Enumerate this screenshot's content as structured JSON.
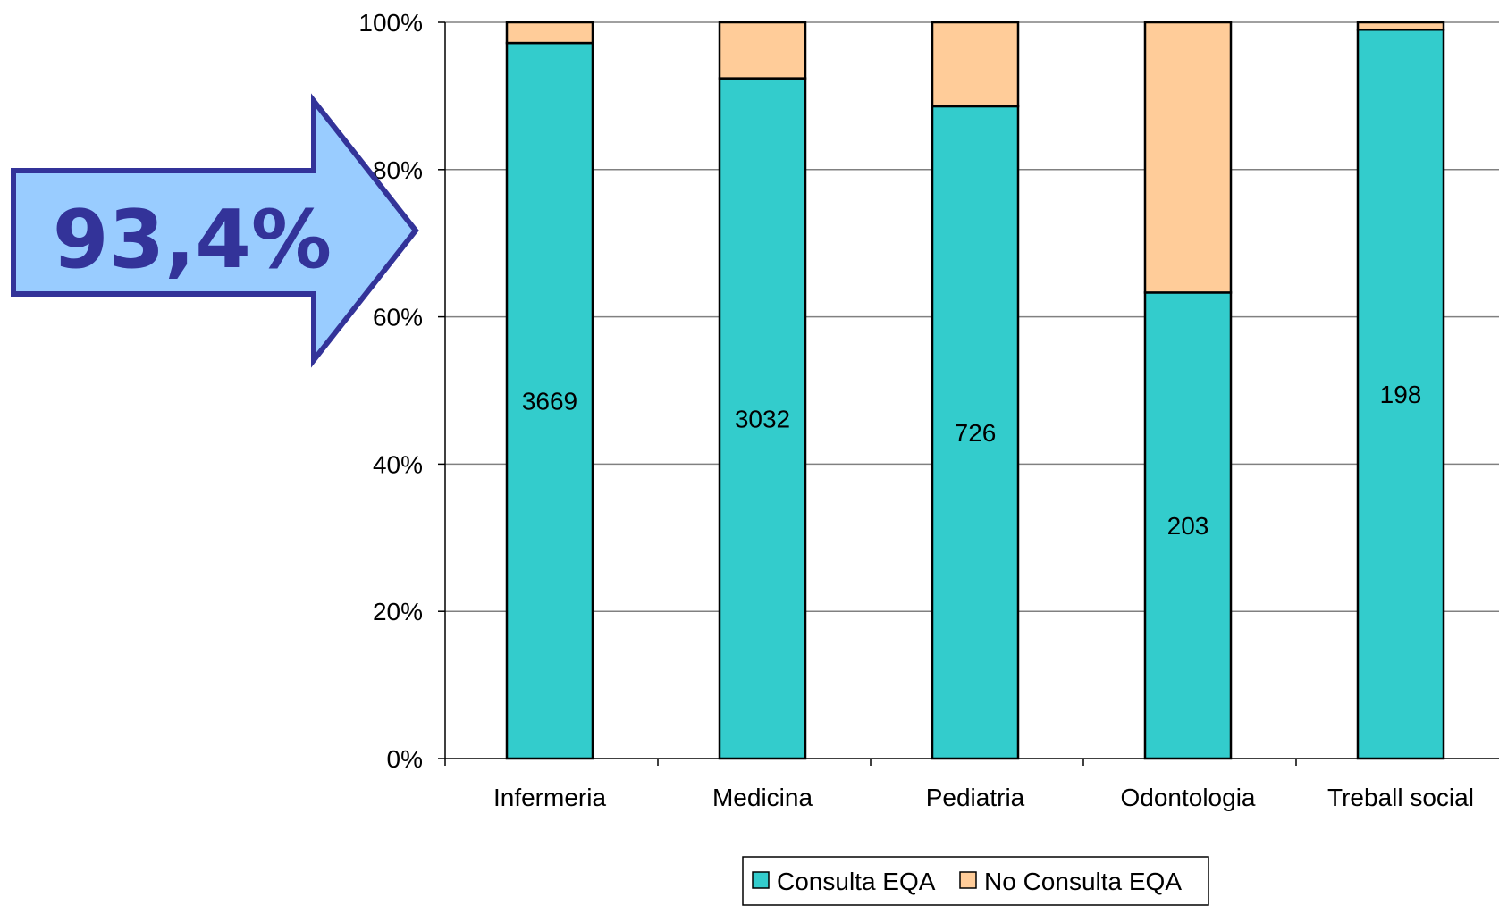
{
  "chart_data": {
    "type": "bar",
    "stacked": true,
    "percent_stacked": true,
    "categories": [
      "Infermeria",
      "Medicina",
      "Pediatria",
      "Odontologia",
      "Treball social"
    ],
    "series": [
      {
        "name": "Consulta EQA",
        "color": "#33CCCC",
        "values": [
          97.2,
          92.4,
          88.6,
          63.3,
          99.0
        ],
        "labels": [
          "3669",
          "3032",
          "726",
          "203",
          "198"
        ]
      },
      {
        "name": "No Consulta EQA",
        "color": "#FFCC99",
        "values": [
          2.8,
          7.6,
          11.4,
          36.7,
          1.0
        ]
      }
    ],
    "y_ticks": [
      "0%",
      "20%",
      "40%",
      "60%",
      "80%",
      "100%"
    ],
    "ylim": [
      0,
      100
    ],
    "grid": true,
    "legend_position": "bottom",
    "callout": {
      "text": "93,4%",
      "fill": "#99CCFF",
      "stroke": "#333399",
      "text_color": "#333399"
    }
  }
}
